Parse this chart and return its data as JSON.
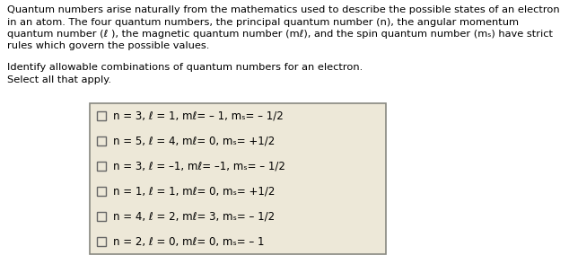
{
  "bg_color": "#ffffff",
  "box_bg_color": "#ede8d8",
  "box_border_color": "#888880",
  "text_color": "#000000",
  "body_font_size": 8.2,
  "option_font_size": 8.5,
  "para1_lines": [
    "Quantum numbers arise naturally from the mathematics used to describe the possible states of an electron",
    "in an atom. The four quantum numbers, the principal quantum number (n), the angular momentum",
    "quantum number (ℓ ), the magnetic quantum number (mℓ), and the spin quantum number (mₛ) have strict",
    "rules which govern the possible values."
  ],
  "para2_lines": [
    "Identify allowable combinations of quantum numbers for an electron.",
    "Select all that apply."
  ],
  "options": [
    [
      "n = 3, ",
      "ℓ",
      " = 1, m",
      "ℓ",
      "= – 1, m",
      "ₛ",
      "= – 1/2"
    ],
    [
      "n = 5, ",
      "ℓ",
      " = 4, m",
      "ℓ",
      "= 0, m",
      "ₛ",
      "= +1/2"
    ],
    [
      "n = 3, ",
      "ℓ",
      " = –1, m",
      "ℓ",
      "= –1, m",
      "ₛ",
      "= – 1/2"
    ],
    [
      "n = 1, ",
      "ℓ",
      " = 1, m",
      "ℓ",
      "= 0, m",
      "ₛ",
      "= +1/2"
    ],
    [
      "n = 4, ",
      "ℓ",
      " = 2, m",
      "ℓ",
      "= 3, m",
      "ₛ",
      "= – 1/2"
    ],
    [
      "n = 2, ",
      "ℓ",
      " = 0, m",
      "ℓ",
      "= 0, m",
      "ₛ",
      "= – 1"
    ]
  ],
  "options_plain": [
    "n = 3, ℓ = 1, mℓ= – 1, mₛ= – 1/2",
    "n = 5, ℓ = 4, mℓ= 0, mₛ= +1/2",
    "n = 3, ℓ = –1, mℓ= –1, mₛ= – 1/2",
    "n = 1, ℓ = 1, mℓ= 0, mₛ= +1/2",
    "n = 4, ℓ = 2, mℓ= 3, mₛ= – 1/2",
    "n = 2, ℓ = 0, mℓ= 0, mₛ= – 1"
  ]
}
